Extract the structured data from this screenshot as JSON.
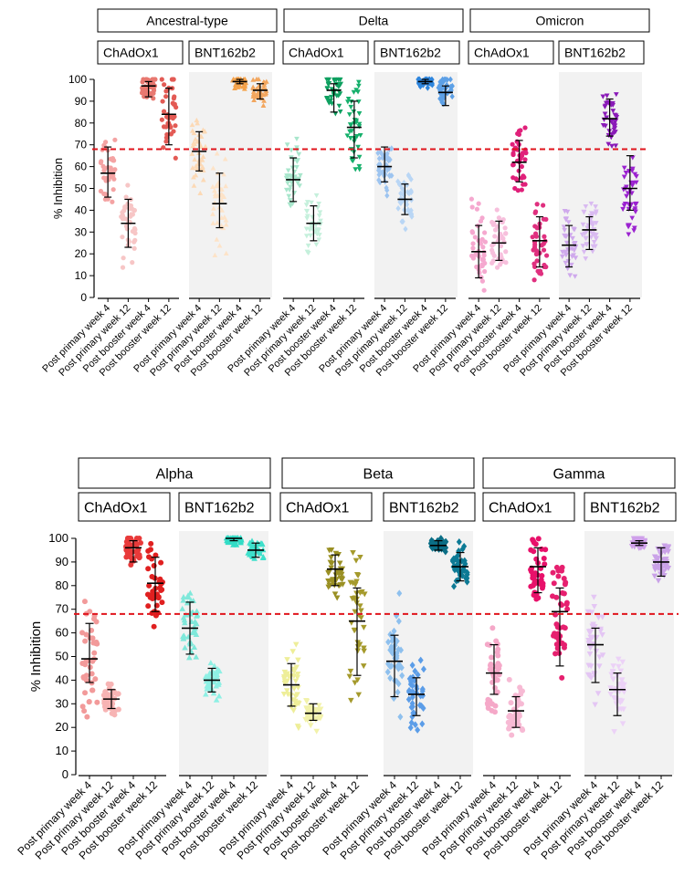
{
  "y_axis_label": "% Inhibition",
  "categories": [
    "Post primary week 4",
    "Post primary week 12",
    "Post booster week 4",
    "Post booster week 12"
  ],
  "vaccines": [
    "ChAdOx1",
    "BNT162b2"
  ],
  "threshold": 68,
  "chart_data": [
    {
      "type": "scatter",
      "panel": "top",
      "xlabel": "",
      "ylabel": "% Inhibition",
      "ylim": [
        0,
        100
      ],
      "yticks": [
        "0",
        "10",
        "20",
        "30",
        "40",
        "50",
        "60",
        "70",
        "80",
        "90",
        "100"
      ],
      "reference_line": 68,
      "variants": [
        {
          "name": "Ancestral-type",
          "groups": [
            {
              "vaccine": "ChAdOx1",
              "medians": [
                57,
                34,
                97,
                84
              ],
              "iqr": [
                [
                  46,
                  69
                ],
                [
                  23,
                  45
                ],
                [
                  92,
                  99
                ],
                [
                  70,
                  96
                ]
              ],
              "colors": [
                "#f4a3a3",
                "#f7c6c6",
                "#e87870",
                "#e35b55"
              ],
              "marker": "circle"
            },
            {
              "vaccine": "BNT162b2",
              "medians": [
                67,
                43,
                99,
                95
              ],
              "iqr": [
                [
                  58,
                  76
                ],
                [
                  32,
                  57
                ],
                [
                  98,
                  100
                ],
                [
                  91,
                  98
                ]
              ],
              "colors": [
                "#fcd9b5",
                "#fde3c8",
                "#f5a24a",
                "#f2a65e"
              ],
              "marker": "triangle"
            }
          ]
        },
        {
          "name": "Delta",
          "groups": [
            {
              "vaccine": "ChAdOx1",
              "medians": [
                54,
                34,
                95,
                78
              ],
              "iqr": [
                [
                  44,
                  64
                ],
                [
                  26,
                  42
                ],
                [
                  85,
                  98
                ],
                [
                  64,
                  90
                ]
              ],
              "colors": [
                "#a8e6cc",
                "#c5f0dc",
                "#0ea060",
                "#16b06c"
              ],
              "marker": "triangle-down"
            },
            {
              "vaccine": "BNT162b2",
              "medians": [
                60,
                45,
                99,
                94
              ],
              "iqr": [
                [
                  53,
                  69
                ],
                [
                  38,
                  52
                ],
                [
                  98,
                  100
                ],
                [
                  88,
                  97
                ]
              ],
              "colors": [
                "#9dc4f0",
                "#b9d6f5",
                "#2e86de",
                "#5da0e6"
              ],
              "marker": "diamond"
            }
          ]
        },
        {
          "name": "Omicron",
          "groups": [
            {
              "vaccine": "ChAdOx1",
              "medians": [
                21,
                25,
                62,
                26
              ],
              "iqr": [
                [
                  9,
                  33
                ],
                [
                  17,
                  35
                ],
                [
                  53,
                  72
                ],
                [
                  14,
                  37
                ]
              ],
              "colors": [
                "#f5a8cf",
                "#f7bfdc",
                "#e0207a",
                "#e0307f"
              ],
              "marker": "circle"
            },
            {
              "vaccine": "BNT162b2",
              "medians": [
                24,
                31,
                82,
                50
              ],
              "iqr": [
                [
                  14,
                  33
                ],
                [
                  22,
                  37
                ],
                [
                  74,
                  91
                ],
                [
                  40,
                  65
                ]
              ],
              "colors": [
                "#cfa9ec",
                "#d9baf1",
                "#8a1ab8",
                "#9b22d0"
              ],
              "marker": "triangle-down"
            }
          ]
        }
      ]
    },
    {
      "type": "scatter",
      "panel": "bottom",
      "xlabel": "",
      "ylabel": "% Inhibition",
      "ylim": [
        0,
        100
      ],
      "yticks": [
        "0",
        "10",
        "20",
        "30",
        "40",
        "50",
        "60",
        "70",
        "80",
        "90",
        "100"
      ],
      "reference_line": 68,
      "variants": [
        {
          "name": "Alpha",
          "groups": [
            {
              "vaccine": "ChAdOx1",
              "medians": [
                49,
                32,
                96,
                81
              ],
              "iqr": [
                [
                  39,
                  64
                ],
                [
                  28,
                  36
                ],
                [
                  90,
                  99
                ],
                [
                  69,
                  92
                ]
              ],
              "colors": [
                "#f29a9a",
                "#f7b4b4",
                "#e83a3a",
                "#e02020"
              ],
              "marker": "circle"
            },
            {
              "vaccine": "BNT162b2",
              "medians": [
                62,
                40,
                100,
                95
              ],
              "iqr": [
                [
                  51,
                  73
                ],
                [
                  35,
                  45
                ],
                [
                  99,
                  100
                ],
                [
                  92,
                  98
                ]
              ],
              "colors": [
                "#7fe8da",
                "#8ef0e4",
                "#33dcc6",
                "#3ee0cb"
              ],
              "marker": "triangle"
            }
          ]
        },
        {
          "name": "Beta",
          "groups": [
            {
              "vaccine": "ChAdOx1",
              "medians": [
                38,
                26,
                87,
                65
              ],
              "iqr": [
                [
                  29,
                  47
                ],
                [
                  23,
                  30
                ],
                [
                  80,
                  93
                ],
                [
                  42,
                  79
                ]
              ],
              "colors": [
                "#eeee99",
                "#f2f2aa",
                "#9a9024",
                "#a59a2c"
              ],
              "marker": "triangle-down"
            },
            {
              "vaccine": "BNT162b2",
              "medians": [
                48,
                34,
                97,
                88
              ],
              "iqr": [
                [
                  33,
                  59
                ],
                [
                  25,
                  41
                ],
                [
                  95,
                  99
                ],
                [
                  82,
                  94
                ]
              ],
              "colors": [
                "#8ec0ee",
                "#5b9de8",
                "#0b6e86",
                "#0d7a95"
              ],
              "marker": "diamond"
            }
          ]
        },
        {
          "name": "Gamma",
          "groups": [
            {
              "vaccine": "ChAdOx1",
              "medians": [
                43,
                27,
                88,
                69
              ],
              "iqr": [
                [
                  34,
                  55
                ],
                [
                  20,
                  33
                ],
                [
                  77,
                  96
                ],
                [
                  46,
                  79
                ]
              ],
              "colors": [
                "#f5a8c8",
                "#f7bad4",
                "#e8116a",
                "#e6206f"
              ],
              "marker": "circle"
            },
            {
              "vaccine": "BNT162b2",
              "medians": [
                55,
                36,
                98,
                90
              ],
              "iqr": [
                [
                  39,
                  62
                ],
                [
                  25,
                  43
                ],
                [
                  97,
                  99
                ],
                [
                  84,
                  96
                ]
              ],
              "colors": [
                "#e4c6f4",
                "#ecd2f7",
                "#cfa0ea",
                "#caa2e8"
              ],
              "marker": "triangle-down"
            }
          ]
        }
      ]
    }
  ]
}
